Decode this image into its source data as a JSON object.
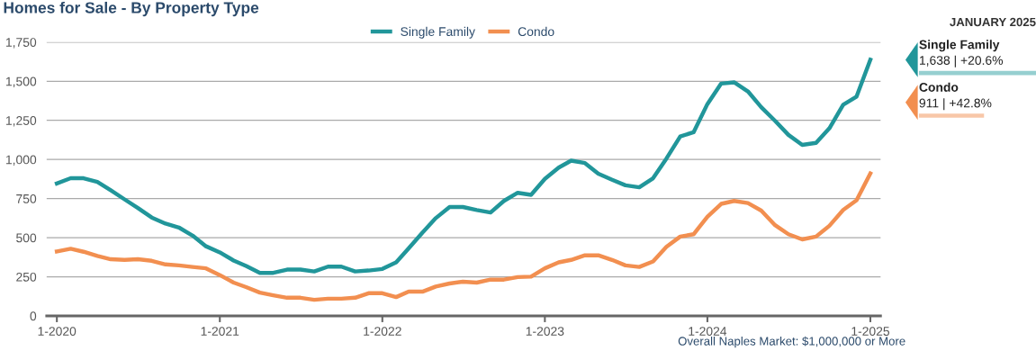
{
  "chart_data": [
    {
      "type": "line",
      "title": "Homes for Sale - By Property Type",
      "x": [
        "2020-01",
        "2020-02",
        "2020-03",
        "2020-04",
        "2020-05",
        "2020-06",
        "2020-07",
        "2020-08",
        "2020-09",
        "2020-10",
        "2020-11",
        "2020-12",
        "2021-01",
        "2021-02",
        "2021-03",
        "2021-04",
        "2021-05",
        "2021-06",
        "2021-07",
        "2021-08",
        "2021-09",
        "2021-10",
        "2021-11",
        "2021-12",
        "2022-01",
        "2022-02",
        "2022-03",
        "2022-04",
        "2022-05",
        "2022-06",
        "2022-07",
        "2022-08",
        "2022-09",
        "2022-10",
        "2022-11",
        "2022-12",
        "2023-01",
        "2023-02",
        "2023-03",
        "2023-04",
        "2023-05",
        "2023-06",
        "2023-07",
        "2023-08",
        "2023-09",
        "2023-10",
        "2023-11",
        "2023-12",
        "2024-01",
        "2024-02",
        "2024-03",
        "2024-04",
        "2024-05",
        "2024-06",
        "2024-07",
        "2024-08",
        "2024-09",
        "2024-10",
        "2024-11",
        "2024-12",
        "2025-01"
      ],
      "series": [
        {
          "name": "Single Family",
          "color": "#21969a",
          "values": [
            847,
            880,
            880,
            857,
            803,
            745,
            690,
            629,
            590,
            565,
            513,
            445,
            406,
            354,
            319,
            275,
            275,
            296,
            296,
            284,
            315,
            315,
            284,
            290,
            300,
            342,
            431,
            532,
            625,
            696,
            696,
            677,
            661,
            735,
            787,
            774,
            876,
            948,
            992,
            977,
            909,
            870,
            835,
            822,
            880,
            1006,
            1147,
            1174,
            1354,
            1485,
            1493,
            1435,
            1334,
            1247,
            1157,
            1093,
            1106,
            1199,
            1350,
            1402,
            1638
          ]
        },
        {
          "name": "Condo",
          "color": "#f28f50",
          "values": [
            412,
            429,
            410,
            383,
            362,
            358,
            362,
            352,
            329,
            323,
            313,
            304,
            261,
            213,
            184,
            149,
            132,
            116,
            116,
            103,
            110,
            110,
            116,
            145,
            145,
            120,
            155,
            155,
            188,
            207,
            219,
            213,
            232,
            232,
            248,
            251,
            304,
            342,
            358,
            387,
            387,
            358,
            323,
            313,
            348,
            441,
            507,
            522,
            634,
            716,
            735,
            721,
            673,
            580,
            522,
            489,
            507,
            576,
            677,
            739,
            911
          ]
        }
      ],
      "xlim": [
        "2019-12-09",
        "2025-01-24"
      ],
      "xticks": [
        {
          "value": "2020-01",
          "label": "1-2020"
        },
        {
          "value": "2021-01",
          "label": "1-2021"
        },
        {
          "value": "2022-01",
          "label": "1-2022"
        },
        {
          "value": "2023-01",
          "label": "1-2023"
        },
        {
          "value": "2024-01",
          "label": "1-2024"
        },
        {
          "value": "2025-01",
          "label": "1-2025"
        }
      ],
      "ylim": [
        0,
        1750
      ],
      "yticks": [
        {
          "value": 0,
          "label": "0"
        },
        {
          "value": 250,
          "label": "250"
        },
        {
          "value": 500,
          "label": "500"
        },
        {
          "value": 750,
          "label": "750"
        },
        {
          "value": 1000,
          "label": "1,000"
        },
        {
          "value": 1250,
          "label": "1,250"
        },
        {
          "value": 1500,
          "label": "1,500"
        },
        {
          "value": 1750,
          "label": "1,750"
        }
      ],
      "grid": "y",
      "legend": "top",
      "marker": "none",
      "line_style": "solid",
      "annotations": [
        "Overall Naples Market: $1,000,000 or More"
      ]
    },
    {
      "type": "bar",
      "orientation": "horizontal",
      "title": "JANUARY 2025",
      "categories": [
        "Single Family",
        "Condo"
      ],
      "values": [
        1638,
        911
      ],
      "colors": [
        "#96cfd0",
        "#f8c7a8"
      ],
      "value_labels": [
        "1,638 | +20.6%",
        "911 | +42.8%"
      ]
    }
  ]
}
